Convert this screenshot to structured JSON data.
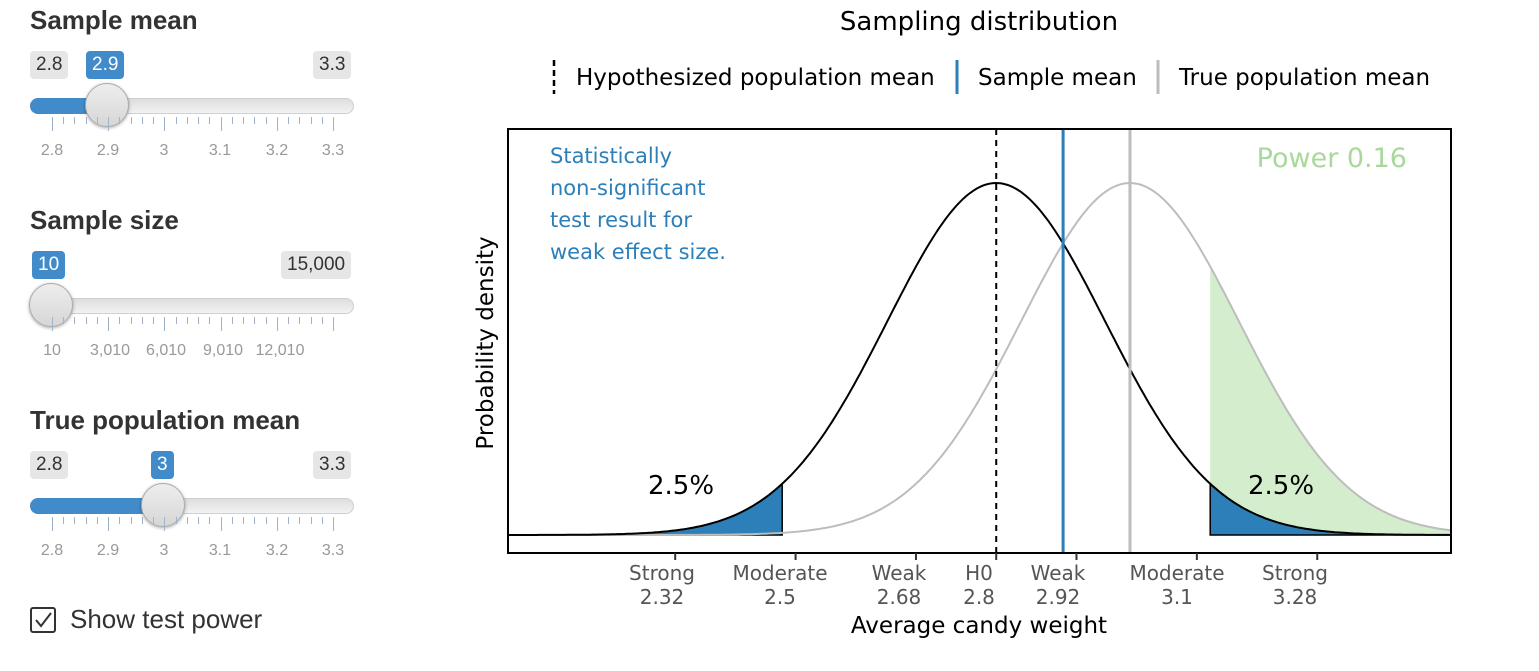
{
  "controls": {
    "sample_mean": {
      "title": "Sample mean",
      "min_label": "2.8",
      "max_label": "3.3",
      "value_label": "2.9",
      "min": 2.8,
      "max": 3.3,
      "value": 2.9,
      "tick_labels": [
        "2.8",
        "2.9",
        "3",
        "3.1",
        "3.2",
        "3.3"
      ]
    },
    "sample_size": {
      "title": "Sample size",
      "min_label": "10",
      "max_label": "15,000",
      "value_label": "10",
      "min": 10,
      "max": 15000,
      "value": 10,
      "tick_labels": [
        "10",
        "3,010",
        "6,010",
        "9,010",
        "12,010"
      ]
    },
    "true_mean": {
      "title": "True population mean",
      "min_label": "2.8",
      "max_label": "3.3",
      "value_label": "3",
      "min": 2.8,
      "max": 3.3,
      "value": 3,
      "tick_labels": [
        "2.8",
        "2.9",
        "3",
        "3.1",
        "3.2",
        "3.3"
      ]
    },
    "show_power": {
      "label": "Show test power",
      "checked": true
    }
  },
  "chart_data": {
    "type": "area",
    "title": "Sampling distribution",
    "xlabel": "Average candy weight",
    "ylabel": "Probability density",
    "xlim": [
      2.07,
      3.48
    ],
    "legend": {
      "placement": "top",
      "entries": [
        {
          "label": "Hypothesized population mean",
          "style": "dashed",
          "color": "#000000"
        },
        {
          "label": "Sample mean",
          "style": "solid",
          "color": "#2c7fb8"
        },
        {
          "label": "True population mean",
          "style": "solid",
          "color": "#bdbdbd"
        }
      ]
    },
    "distributions": [
      {
        "name": "Hypothesized population mean",
        "mean": 2.8,
        "sd": 0.163,
        "color": "#000000"
      },
      {
        "name": "True population mean",
        "mean": 3.0,
        "sd": 0.163,
        "color": "#bdbdbd"
      }
    ],
    "hypothesized_mean": 2.8,
    "sample_mean": 2.9,
    "true_mean": 3.0,
    "critical_values": [
      2.48,
      3.12
    ],
    "tail_labels": [
      "2.5%",
      "2.5%"
    ],
    "power_label": "Power 0.16",
    "annotation": [
      "Statistically",
      "non-significant",
      "test result for",
      "weak effect size."
    ],
    "x_ticks": [
      {
        "value": 2.32,
        "top": "Strong",
        "bottom": "2.32"
      },
      {
        "value": 2.5,
        "top": "Moderate",
        "bottom": "2.5"
      },
      {
        "value": 2.68,
        "top": "Weak",
        "bottom": "2.68"
      },
      {
        "value": 2.8,
        "top": "H0",
        "bottom": "2.8"
      },
      {
        "value": 2.92,
        "top": "Weak",
        "bottom": "2.92"
      },
      {
        "value": 3.1,
        "top": "Moderate",
        "bottom": "3.1"
      },
      {
        "value": 3.28,
        "top": "Strong",
        "bottom": "3.28"
      }
    ],
    "colors": {
      "tail": "#2c7fb8",
      "power": "#d4edcc",
      "power_text": "#a8d99c",
      "annotation": "#2c7fb8"
    }
  }
}
